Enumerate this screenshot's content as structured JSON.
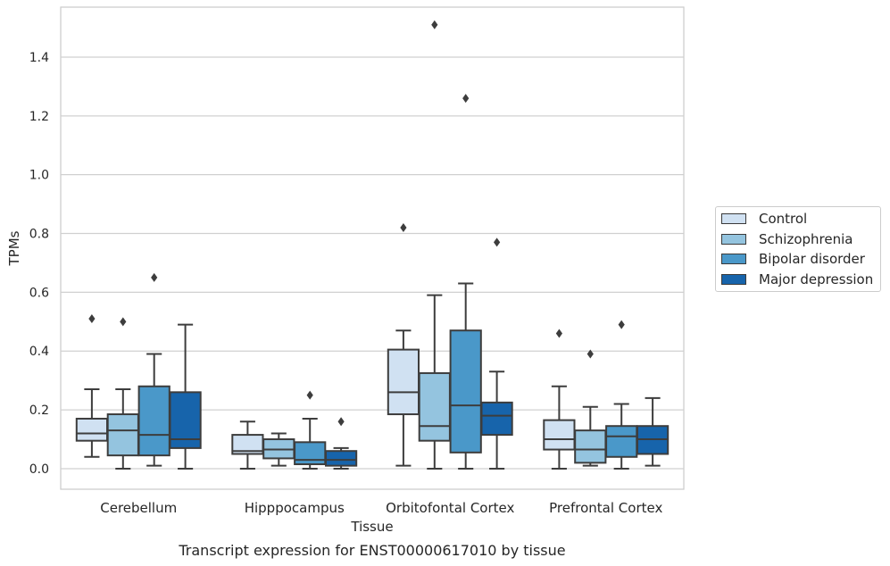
{
  "chart_data": {
    "type": "box",
    "title": "",
    "xlabel": "Tissue",
    "ylabel": "TPMs",
    "caption": "Transcript expression for ENST00000617010 by tissue",
    "ylim": [
      -0.07,
      1.57
    ],
    "yticks": [
      0.0,
      0.2,
      0.4,
      0.6,
      0.8,
      1.0,
      1.2,
      1.4
    ],
    "ytick_labels": [
      "0.0",
      "0.2",
      "0.4",
      "0.6",
      "0.8",
      "1.0",
      "1.2",
      "1.4"
    ],
    "grid": "horizontal",
    "legend_placement": "right",
    "categories": [
      "Cerebellum",
      "Hipppocampus",
      "Orbitofontal Cortex",
      "Prefrontal Cortex"
    ],
    "series": [
      {
        "name": "Control",
        "color": "#d0e1f2",
        "boxes": [
          {
            "whislo": 0.04,
            "q1": 0.095,
            "med": 0.12,
            "q3": 0.17,
            "whishi": 0.27,
            "fliers": [
              0.51
            ]
          },
          {
            "whislo": 0.0,
            "q1": 0.05,
            "med": 0.06,
            "q3": 0.115,
            "whishi": 0.16,
            "fliers": []
          },
          {
            "whislo": 0.01,
            "q1": 0.185,
            "med": 0.26,
            "q3": 0.405,
            "whishi": 0.47,
            "fliers": [
              0.82
            ]
          },
          {
            "whislo": 0.0,
            "q1": 0.065,
            "med": 0.1,
            "q3": 0.165,
            "whishi": 0.28,
            "fliers": [
              0.46
            ]
          }
        ]
      },
      {
        "name": "Schizophrenia",
        "color": "#94c4df",
        "boxes": [
          {
            "whislo": 0.0,
            "q1": 0.045,
            "med": 0.13,
            "q3": 0.185,
            "whishi": 0.27,
            "fliers": [
              0.5
            ]
          },
          {
            "whislo": 0.01,
            "q1": 0.035,
            "med": 0.065,
            "q3": 0.1,
            "whishi": 0.12,
            "fliers": []
          },
          {
            "whislo": 0.0,
            "q1": 0.095,
            "med": 0.145,
            "q3": 0.325,
            "whishi": 0.59,
            "fliers": [
              1.51
            ]
          },
          {
            "whislo": 0.01,
            "q1": 0.02,
            "med": 0.065,
            "q3": 0.13,
            "whishi": 0.21,
            "fliers": [
              0.39
            ]
          }
        ]
      },
      {
        "name": "Bipolar disorder",
        "color": "#4a98c9",
        "boxes": [
          {
            "whislo": 0.01,
            "q1": 0.045,
            "med": 0.115,
            "q3": 0.28,
            "whishi": 0.39,
            "fliers": [
              0.65
            ]
          },
          {
            "whislo": 0.0,
            "q1": 0.015,
            "med": 0.03,
            "q3": 0.09,
            "whishi": 0.17,
            "fliers": [
              0.25
            ]
          },
          {
            "whislo": 0.0,
            "q1": 0.055,
            "med": 0.215,
            "q3": 0.47,
            "whishi": 0.63,
            "fliers": [
              1.26
            ]
          },
          {
            "whislo": 0.0,
            "q1": 0.04,
            "med": 0.11,
            "q3": 0.145,
            "whishi": 0.22,
            "fliers": [
              0.49
            ]
          }
        ]
      },
      {
        "name": "Major depression",
        "color": "#1764ab",
        "boxes": [
          {
            "whislo": 0.0,
            "q1": 0.07,
            "med": 0.1,
            "q3": 0.26,
            "whishi": 0.49,
            "fliers": []
          },
          {
            "whislo": 0.0,
            "q1": 0.01,
            "med": 0.03,
            "q3": 0.06,
            "whishi": 0.07,
            "fliers": [
              0.16
            ]
          },
          {
            "whislo": 0.0,
            "q1": 0.115,
            "med": 0.18,
            "q3": 0.225,
            "whishi": 0.33,
            "fliers": [
              0.77
            ]
          },
          {
            "whislo": 0.01,
            "q1": 0.05,
            "med": 0.1,
            "q3": 0.145,
            "whishi": 0.24,
            "fliers": []
          }
        ]
      }
    ]
  }
}
